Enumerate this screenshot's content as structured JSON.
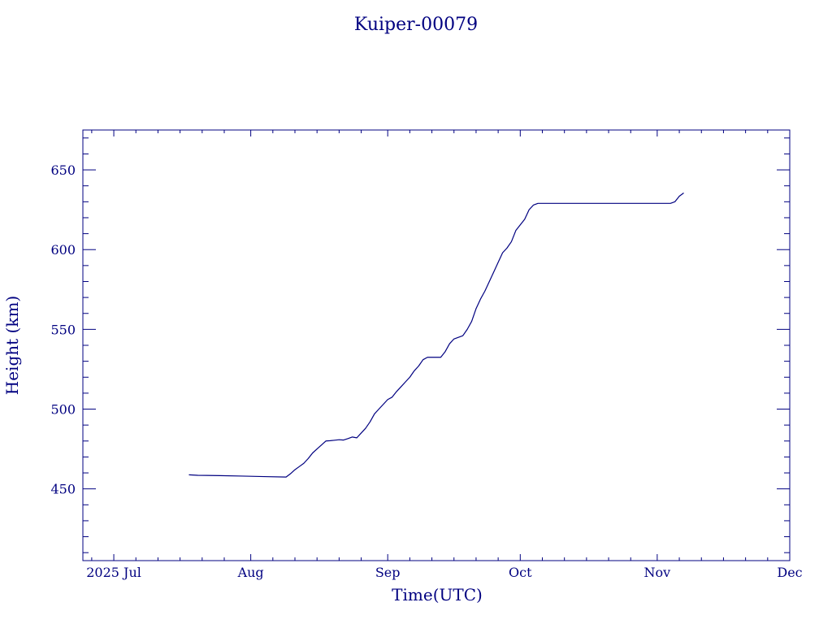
{
  "chart_data": {
    "type": "line",
    "title": "Kuiper-00079",
    "xlabel": "Time(UTC)",
    "ylabel": "Height (km)",
    "xlim": [
      "2025-06-24",
      "2025-12-01"
    ],
    "ylim": [
      405,
      675
    ],
    "x_ticks": [
      {
        "date": "2025-07-01",
        "label": "2025 Jul"
      },
      {
        "date": "2025-08-01",
        "label": "Aug"
      },
      {
        "date": "2025-09-01",
        "label": "Sep"
      },
      {
        "date": "2025-10-01",
        "label": "Oct"
      },
      {
        "date": "2025-11-01",
        "label": "Nov"
      },
      {
        "date": "2025-12-01",
        "label": "Dec"
      }
    ],
    "y_ticks": [
      450,
      500,
      550,
      600,
      650
    ],
    "series": [
      {
        "points": [
          [
            "2025-07-18",
            458.8
          ],
          [
            "2025-07-20",
            458.5
          ],
          [
            "2025-07-25",
            458.3
          ],
          [
            "2025-07-30",
            458.0
          ],
          [
            "2025-08-04",
            457.7
          ],
          [
            "2025-08-09",
            457.4
          ],
          [
            "2025-08-10",
            459.5
          ],
          [
            "2025-08-11",
            462.0
          ],
          [
            "2025-08-12",
            464.0
          ],
          [
            "2025-08-13",
            466.0
          ],
          [
            "2025-08-14",
            469.0
          ],
          [
            "2025-08-15",
            472.5
          ],
          [
            "2025-08-16",
            475.0
          ],
          [
            "2025-08-17",
            477.5
          ],
          [
            "2025-08-18",
            480.0
          ],
          [
            "2025-08-19",
            480.2
          ],
          [
            "2025-08-20",
            480.5
          ],
          [
            "2025-08-21",
            480.8
          ],
          [
            "2025-08-22",
            480.6
          ],
          [
            "2025-08-23",
            481.5
          ],
          [
            "2025-08-24",
            482.5
          ],
          [
            "2025-08-25",
            482.0
          ],
          [
            "2025-08-26",
            485.0
          ],
          [
            "2025-08-27",
            488.0
          ],
          [
            "2025-08-28",
            492.0
          ],
          [
            "2025-08-29",
            497.0
          ],
          [
            "2025-08-30",
            500.0
          ],
          [
            "2025-08-31",
            503.0
          ],
          [
            "2025-09-01",
            506.0
          ],
          [
            "2025-09-02",
            507.5
          ],
          [
            "2025-09-03",
            511.0
          ],
          [
            "2025-09-04",
            514.0
          ],
          [
            "2025-09-05",
            517.0
          ],
          [
            "2025-09-06",
            520.0
          ],
          [
            "2025-09-07",
            524.0
          ],
          [
            "2025-09-08",
            527.0
          ],
          [
            "2025-09-09",
            531.0
          ],
          [
            "2025-09-10",
            532.5
          ],
          [
            "2025-09-11",
            532.5
          ],
          [
            "2025-09-12",
            532.5
          ],
          [
            "2025-09-13",
            532.5
          ],
          [
            "2025-09-14",
            536.0
          ],
          [
            "2025-09-15",
            541.0
          ],
          [
            "2025-09-16",
            544.0
          ],
          [
            "2025-09-17",
            545.0
          ],
          [
            "2025-09-18",
            546.0
          ],
          [
            "2025-09-19",
            550.0
          ],
          [
            "2025-09-20",
            555.0
          ],
          [
            "2025-09-21",
            563.0
          ],
          [
            "2025-09-22",
            569.0
          ],
          [
            "2025-09-23",
            574.0
          ],
          [
            "2025-09-24",
            580.0
          ],
          [
            "2025-09-25",
            586.0
          ],
          [
            "2025-09-26",
            592.0
          ],
          [
            "2025-09-27",
            598.0
          ],
          [
            "2025-09-28",
            601.0
          ],
          [
            "2025-09-29",
            605.0
          ],
          [
            "2025-09-30",
            612.0
          ],
          [
            "2025-10-01",
            615.5
          ],
          [
            "2025-10-02",
            619.0
          ],
          [
            "2025-10-03",
            625.0
          ],
          [
            "2025-10-04",
            628.0
          ],
          [
            "2025-10-05",
            629.0
          ],
          [
            "2025-10-15",
            629.0
          ],
          [
            "2025-10-25",
            629.0
          ],
          [
            "2025-11-04",
            629.0
          ],
          [
            "2025-11-05",
            630.0
          ],
          [
            "2025-11-06",
            633.5
          ],
          [
            "2025-11-07",
            635.5
          ]
        ]
      }
    ],
    "grid": false,
    "legend": "none",
    "color": "#000080"
  }
}
